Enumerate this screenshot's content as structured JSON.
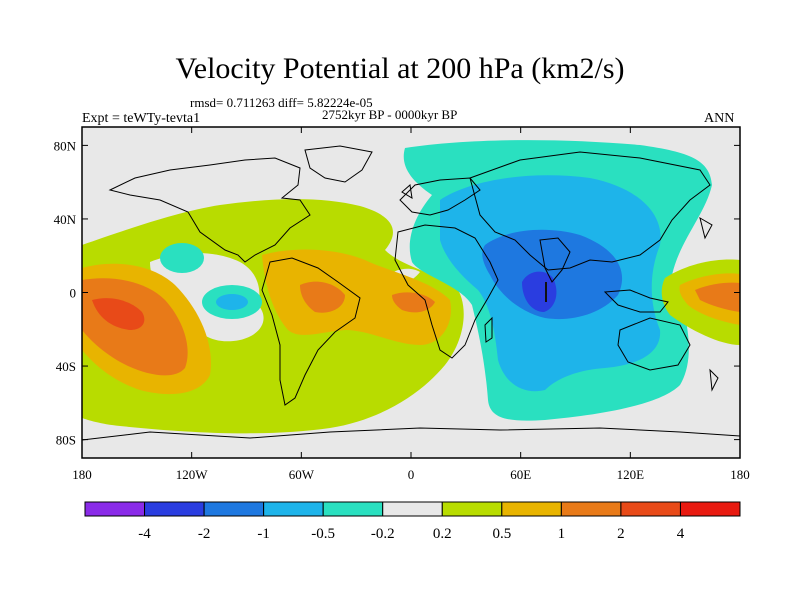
{
  "title": "Velocity Potential at 200 hPa (km2/s)",
  "stats": "rmsd= 0.711263  diff= 5.82224e-05",
  "period": "2752kyr BP - 0000kyr BP",
  "experiment": "Expt = teWTy-tevta1",
  "season": "ANN",
  "map": {
    "projection": "cylindrical equidistant",
    "lon_range": [
      -180,
      180
    ],
    "lat_range": [
      -90,
      90
    ],
    "lat_ticks": [
      {
        "value": 80,
        "label": "80N"
      },
      {
        "value": 40,
        "label": "40N"
      },
      {
        "value": 0,
        "label": "0"
      },
      {
        "value": -40,
        "label": "40S"
      },
      {
        "value": -80,
        "label": "80S"
      }
    ],
    "lon_ticks": [
      {
        "value": -180,
        "label": "180"
      },
      {
        "value": -120,
        "label": "120W"
      },
      {
        "value": -60,
        "label": "60W"
      },
      {
        "value": 0,
        "label": "0"
      },
      {
        "value": 60,
        "label": "60E"
      },
      {
        "value": 120,
        "label": "120E"
      },
      {
        "value": 180,
        "label": "180"
      }
    ]
  },
  "colorbar": {
    "colors": [
      "#8a2be8",
      "#2a3de0",
      "#1e78e0",
      "#1eb4ea",
      "#2ae0c0",
      "#e8e8e8",
      "#b8dc00",
      "#e8b400",
      "#e87a18",
      "#e84a18",
      "#e81a10"
    ],
    "labels": [
      "-4",
      "-2",
      "-1",
      "-0.5",
      "-0.2",
      "0.2",
      "0.5",
      "1",
      "2",
      "4"
    ]
  },
  "legend_colors": {
    "neutral": "#e8e8e8",
    "pos_weak": "#b8dc00",
    "pos_mid": "#e8b400",
    "pos_strong": "#e87a18",
    "neg_weak": "#2ae0c0",
    "neg_mid": "#1eb4ea",
    "neg_strong": "#1e78e0",
    "neg_extreme": "#2a3de0"
  }
}
